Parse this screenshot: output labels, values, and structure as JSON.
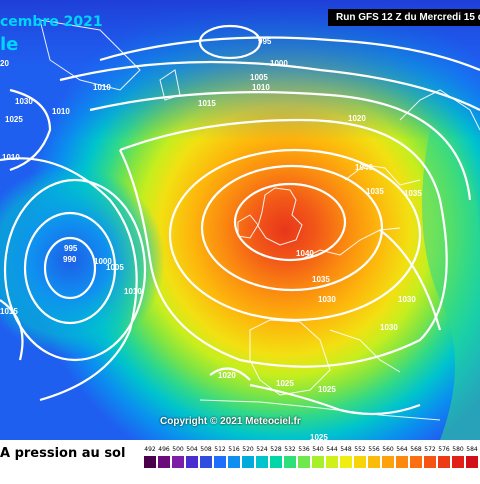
{
  "header": {
    "date_fragment": "cembre 2021",
    "title_fragment": "le",
    "run_text": "Run GFS 12 Z du Mercredi 15 d"
  },
  "copyright": "Copyright © 2021 Meteociel.fr",
  "legend": {
    "label": "A pression au sol",
    "values": [
      "492",
      "496",
      "500",
      "504",
      "508",
      "512",
      "516",
      "520",
      "524",
      "528",
      "532",
      "536",
      "540",
      "544",
      "548",
      "552",
      "556",
      "560",
      "564",
      "568",
      "572",
      "576",
      "580",
      "584"
    ],
    "colors": [
      "#4b004b",
      "#6a0d7a",
      "#7d1ea8",
      "#4a2fd0",
      "#2f4ee0",
      "#1f6fff",
      "#0f8ff0",
      "#00aadd",
      "#00c4cc",
      "#00d6a6",
      "#2fe07a",
      "#6ee84c",
      "#a6ef2a",
      "#d0f01a",
      "#f0ee10",
      "#f7d40a",
      "#fbbb0a",
      "#fda20c",
      "#fd880e",
      "#fb6e12",
      "#f55414",
      "#ec3a16",
      "#e22018",
      "#d10e1a"
    ]
  },
  "isobars": [
    {
      "text": "995"
    },
    {
      "text": "1000"
    },
    {
      "text": "1005"
    },
    {
      "text": "1010"
    },
    {
      "text": "1015"
    },
    {
      "text": "1020"
    },
    {
      "text": "1030"
    },
    {
      "text": "1025"
    },
    {
      "text": "1010"
    },
    {
      "text": "1010"
    },
    {
      "text": "1010"
    },
    {
      "text": "1040"
    },
    {
      "text": "1035"
    },
    {
      "text": "1035"
    },
    {
      "text": "1040"
    },
    {
      "text": "1035"
    },
    {
      "text": "1030"
    },
    {
      "text": "1030"
    },
    {
      "text": "1030"
    },
    {
      "text": "995"
    },
    {
      "text": "990"
    },
    {
      "text": "1000"
    },
    {
      "text": "1005"
    },
    {
      "text": "1010"
    },
    {
      "text": "1015"
    },
    {
      "text": "1020"
    },
    {
      "text": "1025"
    },
    {
      "text": "1025"
    },
    {
      "text": "1025"
    },
    {
      "text": "20"
    }
  ]
}
